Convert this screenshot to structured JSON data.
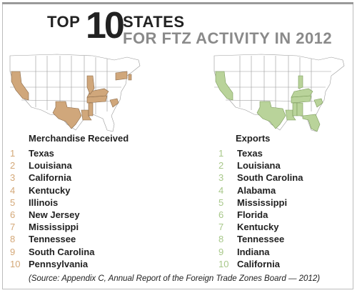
{
  "title": {
    "top_word": "TOP",
    "number": "10",
    "states_word": "STATES",
    "subtitle": "FOR FTZ ACTIVITY IN 2012"
  },
  "colors": {
    "merchandise_fill": "#d0a77b",
    "exports_fill": "#b9d39a",
    "merchandise_rank": "#d4a878",
    "exports_rank": "#a8c88a"
  },
  "merchandise": {
    "heading": "Merchandise Received",
    "items": [
      {
        "rank": "1",
        "state": "Texas"
      },
      {
        "rank": "2",
        "state": "Louisiana"
      },
      {
        "rank": "3",
        "state": "California"
      },
      {
        "rank": "4",
        "state": "Kentucky"
      },
      {
        "rank": "5",
        "state": "Illinois"
      },
      {
        "rank": "6",
        "state": "New Jersey"
      },
      {
        "rank": "7",
        "state": "Mississippi"
      },
      {
        "rank": "8",
        "state": "Tennessee"
      },
      {
        "rank": "9",
        "state": "South Carolina"
      },
      {
        "rank": "10",
        "state": "Pennsylvania"
      }
    ]
  },
  "exports": {
    "heading": "Exports",
    "items": [
      {
        "rank": "1",
        "state": "Texas"
      },
      {
        "rank": "2",
        "state": "Louisiana"
      },
      {
        "rank": "3",
        "state": "South Carolina"
      },
      {
        "rank": "4",
        "state": "Alabama"
      },
      {
        "rank": "5",
        "state": "Mississippi"
      },
      {
        "rank": "6",
        "state": "Florida"
      },
      {
        "rank": "7",
        "state": "Kentucky"
      },
      {
        "rank": "8",
        "state": "Tennessee"
      },
      {
        "rank": "9",
        "state": "Indiana"
      },
      {
        "rank": "10",
        "state": "California"
      }
    ]
  },
  "source": "(Source: Appendix C, Annual Report of the Foreign Trade Zones Board — 2012)"
}
